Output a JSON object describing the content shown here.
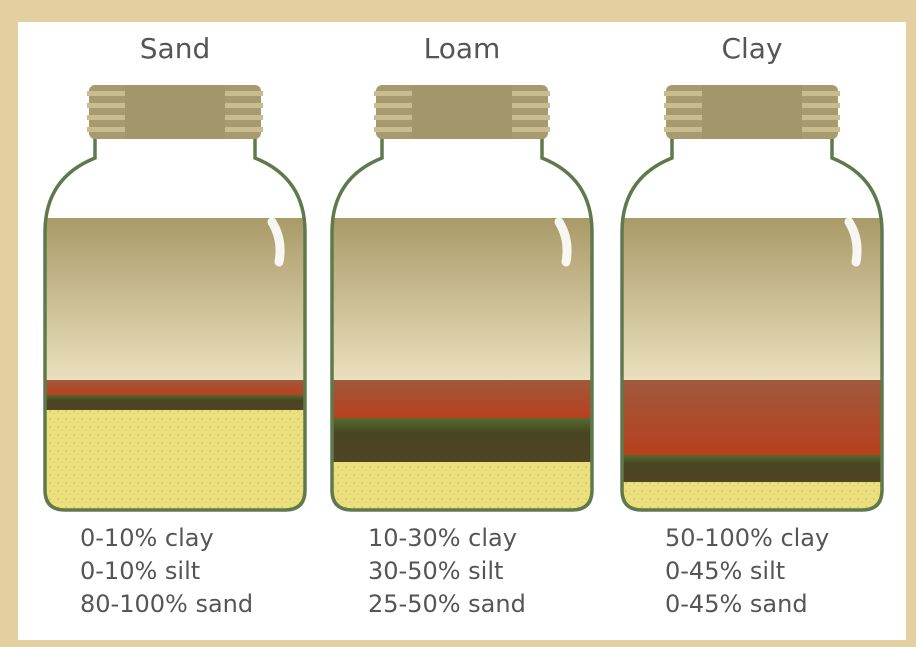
{
  "jars": [
    {
      "title": "Sand",
      "composition": [
        "0-10% clay",
        "0-10% silt",
        "80-100% sand"
      ]
    },
    {
      "title": "Loam",
      "composition": [
        "10-30% clay",
        "30-50% silt",
        "25-50% sand"
      ]
    },
    {
      "title": "Clay",
      "composition": [
        "50-100% clay",
        "0-45% silt",
        "0-45% sand"
      ]
    }
  ]
}
